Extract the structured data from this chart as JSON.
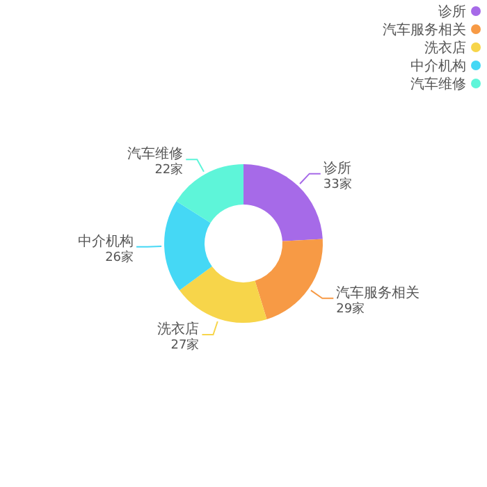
{
  "chart_data": {
    "type": "donut",
    "categories": [
      "诊所",
      "汽车服务相关",
      "洗衣店",
      "中介机构",
      "汽车维修"
    ],
    "values": [
      33,
      29,
      27,
      26,
      22
    ],
    "value_labels": [
      "33家",
      "29家",
      "27家",
      "26家",
      "22家"
    ],
    "colors": [
      "#a66ae8",
      "#f79a45",
      "#f7d54a",
      "#45d8f5",
      "#5ef5d9"
    ],
    "legend": "top right"
  }
}
